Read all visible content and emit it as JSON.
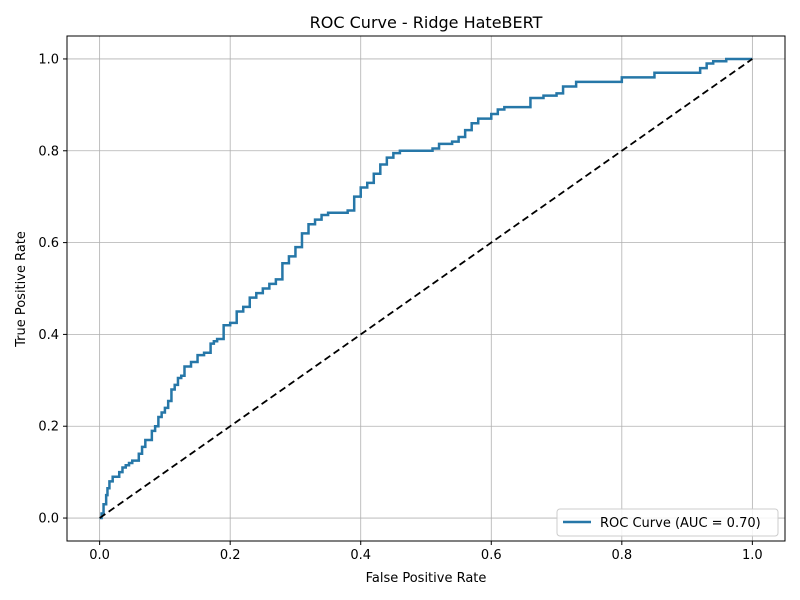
{
  "chart_data": {
    "type": "line",
    "title": "ROC Curve - Ridge HateBERT",
    "xlabel": "False Positive Rate",
    "ylabel": "True Positive Rate",
    "xlim": [
      -0.05,
      1.05
    ],
    "ylim": [
      -0.05,
      1.05
    ],
    "xticks": [
      0.0,
      0.2,
      0.4,
      0.6,
      0.8,
      1.0
    ],
    "xtick_labels": [
      "0.0",
      "0.2",
      "0.4",
      "0.6",
      "0.8",
      "1.0"
    ],
    "yticks": [
      0.0,
      0.2,
      0.4,
      0.6,
      0.8,
      1.0
    ],
    "ytick_labels": [
      "0.0",
      "0.2",
      "0.4",
      "0.6",
      "0.8",
      "1.0"
    ],
    "grid": true,
    "legend_position": "lower right",
    "series": [
      {
        "name": "ROC Curve (AUC = 0.70)",
        "color": "#2677a8",
        "style": "solid",
        "x": [
          0.0,
          0.003,
          0.006,
          0.006,
          0.01,
          0.012,
          0.015,
          0.015,
          0.02,
          0.03,
          0.035,
          0.04,
          0.045,
          0.05,
          0.06,
          0.065,
          0.07,
          0.08,
          0.085,
          0.09,
          0.095,
          0.1,
          0.105,
          0.11,
          0.115,
          0.12,
          0.125,
          0.13,
          0.14,
          0.15,
          0.16,
          0.17,
          0.175,
          0.18,
          0.19,
          0.2,
          0.21,
          0.22,
          0.23,
          0.24,
          0.25,
          0.26,
          0.27,
          0.28,
          0.29,
          0.3,
          0.31,
          0.32,
          0.33,
          0.34,
          0.35,
          0.36,
          0.38,
          0.39,
          0.4,
          0.41,
          0.42,
          0.43,
          0.44,
          0.45,
          0.46,
          0.5,
          0.51,
          0.52,
          0.54,
          0.55,
          0.56,
          0.57,
          0.58,
          0.6,
          0.61,
          0.62,
          0.65,
          0.66,
          0.68,
          0.7,
          0.71,
          0.73,
          0.75,
          0.8,
          0.81,
          0.85,
          0.9,
          0.92,
          0.93,
          0.94,
          0.96,
          1.0
        ],
        "y": [
          0.0,
          0.01,
          0.02,
          0.03,
          0.05,
          0.065,
          0.08,
          0.08,
          0.09,
          0.1,
          0.11,
          0.115,
          0.12,
          0.125,
          0.14,
          0.155,
          0.17,
          0.19,
          0.2,
          0.22,
          0.23,
          0.24,
          0.255,
          0.28,
          0.29,
          0.305,
          0.31,
          0.33,
          0.34,
          0.355,
          0.36,
          0.38,
          0.385,
          0.39,
          0.42,
          0.425,
          0.45,
          0.46,
          0.48,
          0.49,
          0.5,
          0.51,
          0.52,
          0.555,
          0.57,
          0.59,
          0.62,
          0.64,
          0.65,
          0.66,
          0.665,
          0.665,
          0.67,
          0.7,
          0.72,
          0.73,
          0.75,
          0.77,
          0.785,
          0.795,
          0.8,
          0.8,
          0.805,
          0.815,
          0.82,
          0.83,
          0.845,
          0.86,
          0.87,
          0.88,
          0.89,
          0.895,
          0.895,
          0.915,
          0.92,
          0.925,
          0.94,
          0.95,
          0.95,
          0.96,
          0.96,
          0.97,
          0.97,
          0.98,
          0.99,
          0.995,
          1.0,
          1.0
        ]
      },
      {
        "name": "",
        "color": "#000000",
        "style": "dashed",
        "x": [
          0.0,
          1.0
        ],
        "y": [
          0.0,
          1.0
        ]
      }
    ]
  }
}
